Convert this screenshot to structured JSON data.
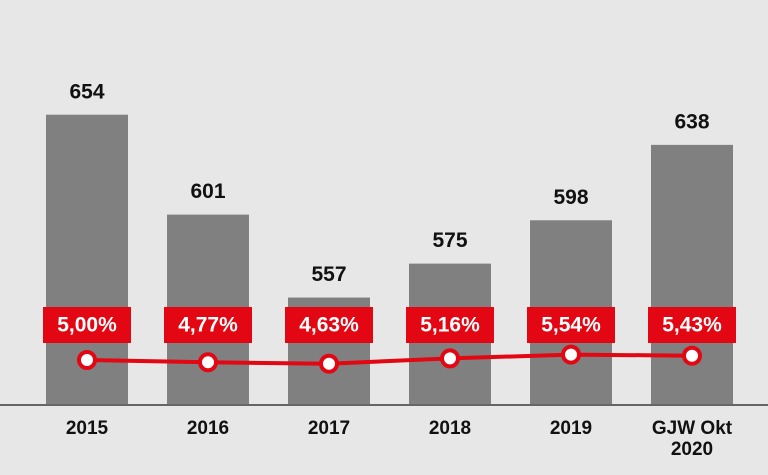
{
  "chart_data": {
    "type": "bar",
    "categories": [
      "2015",
      "2016",
      "2017",
      "2018",
      "2019",
      "GJW Okt 2020"
    ],
    "series": [
      {
        "type": "bar",
        "color": "#808080",
        "values": [
          654,
          601,
          557,
          575,
          598,
          638
        ]
      },
      {
        "type": "line",
        "axis": "y2",
        "color": "#e30613",
        "values": [
          5.0,
          4.77,
          4.63,
          5.16,
          5.54,
          5.43
        ],
        "value_labels": [
          "5,00%",
          "4,77%",
          "4,63%",
          "5,16%",
          "5,54%",
          "5,43%"
        ]
      }
    ],
    "ylim": [
      500,
      700
    ],
    "y2lim": [
      0.5,
      38.2
    ]
  }
}
